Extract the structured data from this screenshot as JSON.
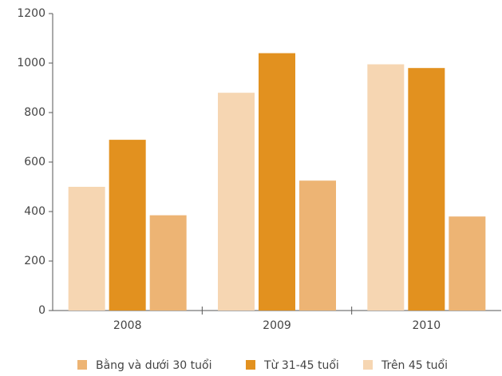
{
  "chart_data": {
    "type": "bar",
    "categories": [
      "2008",
      "2009",
      "2010"
    ],
    "series": [
      {
        "name": "Trên 45 tuổi",
        "color": "#f6d6b2",
        "values": [
          500,
          880,
          995
        ]
      },
      {
        "name": "Từ 31-45 tuổi",
        "color": "#e2911f",
        "values": [
          690,
          1040,
          980
        ]
      },
      {
        "name": "Bằng và dưới 30 tuổi",
        "color": "#edb474",
        "values": [
          385,
          525,
          380
        ]
      }
    ],
    "ylim": [
      0,
      1200
    ],
    "yticks": [
      0,
      200,
      400,
      600,
      800,
      1000,
      1200
    ],
    "grid": false
  }
}
